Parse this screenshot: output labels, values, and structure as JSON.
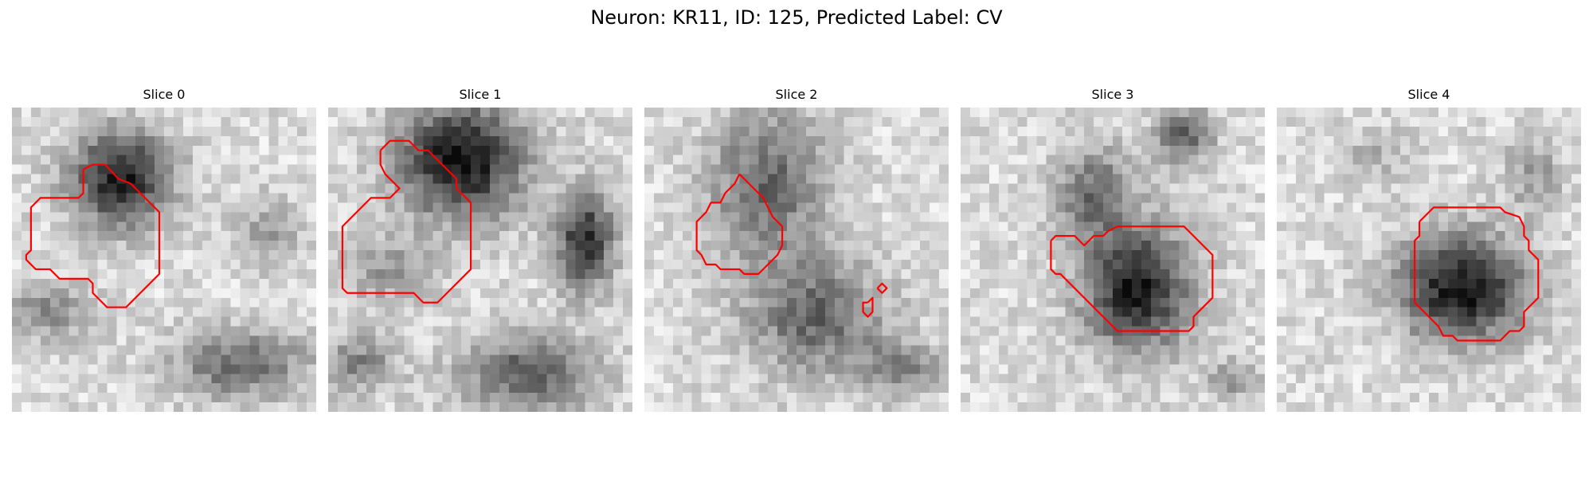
{
  "figure": {
    "title": "Neuron: KR11, ID: 125, Predicted Label: CV",
    "contour_color": "#ff0000"
  },
  "panels": [
    {
      "title": "Slice 0",
      "blobs": [
        {
          "cx": 11.5,
          "cy": 7.5,
          "rx": 5.2,
          "ry": 5.0,
          "strength": 0.75
        },
        {
          "cx": 24.0,
          "cy": 27.0,
          "rx": 7.0,
          "ry": 3.5,
          "strength": 0.45
        },
        {
          "cx": 3.5,
          "cy": 21.5,
          "rx": 5.0,
          "ry": 3.0,
          "strength": 0.3
        },
        {
          "cx": 27.0,
          "cy": 13.0,
          "rx": 3.0,
          "ry": 3.5,
          "strength": 0.25
        }
      ],
      "contours": [
        [
          [
            7.5,
            6.5
          ],
          [
            8.5,
            6.0
          ],
          [
            9.8,
            6.0
          ],
          [
            11.2,
            7.5
          ],
          [
            12.5,
            8.0
          ],
          [
            15.0,
            10.5
          ],
          [
            15.5,
            11.0
          ],
          [
            15.5,
            17.5
          ],
          [
            12.0,
            21.0
          ],
          [
            10.0,
            21.0
          ],
          [
            8.5,
            19.5
          ],
          [
            8.5,
            18.5
          ],
          [
            8.0,
            18.0
          ],
          [
            5.0,
            18.0
          ],
          [
            4.0,
            17.0
          ],
          [
            2.5,
            17.0
          ],
          [
            1.5,
            16.0
          ],
          [
            1.5,
            15.5
          ],
          [
            2.0,
            15.0
          ],
          [
            2.0,
            10.5
          ],
          [
            3.0,
            9.5
          ],
          [
            7.0,
            9.5
          ],
          [
            7.5,
            9.0
          ],
          [
            7.5,
            6.5
          ]
        ]
      ]
    },
    {
      "title": "Slice 1",
      "blobs": [
        {
          "cx": 14.0,
          "cy": 5.5,
          "rx": 6.5,
          "ry": 6.0,
          "strength": 0.8
        },
        {
          "cx": 27.0,
          "cy": 14.0,
          "rx": 3.0,
          "ry": 5.0,
          "strength": 0.7
        },
        {
          "cx": 21.0,
          "cy": 28.0,
          "rx": 7.0,
          "ry": 4.0,
          "strength": 0.5
        },
        {
          "cx": 6.0,
          "cy": 17.0,
          "rx": 5.0,
          "ry": 3.5,
          "strength": 0.25
        },
        {
          "cx": 3.0,
          "cy": 27.0,
          "rx": 4.0,
          "ry": 3.0,
          "strength": 0.35
        }
      ],
      "contours": [
        [
          [
            5.5,
            4.5
          ],
          [
            6.5,
            3.5
          ],
          [
            8.5,
            3.5
          ],
          [
            9.5,
            4.5
          ],
          [
            10.5,
            4.5
          ],
          [
            13.5,
            7.5
          ],
          [
            13.5,
            8.5
          ],
          [
            15.0,
            10.0
          ],
          [
            15.0,
            17.0
          ],
          [
            11.5,
            20.5
          ],
          [
            10.0,
            20.5
          ],
          [
            9.0,
            19.5
          ],
          [
            2.0,
            19.5
          ],
          [
            1.5,
            19.0
          ],
          [
            1.5,
            12.5
          ],
          [
            4.5,
            9.5
          ],
          [
            6.5,
            9.5
          ],
          [
            7.5,
            8.5
          ],
          [
            6.0,
            7.0
          ],
          [
            5.5,
            6.0
          ],
          [
            5.5,
            4.5
          ]
        ]
      ]
    },
    {
      "title": "Slice 2",
      "blobs": [
        {
          "cx": 13.0,
          "cy": 8.0,
          "rx": 6.0,
          "ry": 8.0,
          "strength": 0.45
        },
        {
          "cx": 18.0,
          "cy": 22.0,
          "rx": 7.0,
          "ry": 6.0,
          "strength": 0.45
        },
        {
          "cx": 27.0,
          "cy": 27.5,
          "rx": 4.0,
          "ry": 3.0,
          "strength": 0.35
        }
      ],
      "contours": [
        [
          [
            10.0,
            7.0
          ],
          [
            11.0,
            8.0
          ],
          [
            12.5,
            9.5
          ],
          [
            13.5,
            11.5
          ],
          [
            14.5,
            12.5
          ],
          [
            14.5,
            14.5
          ],
          [
            14.0,
            15.5
          ],
          [
            13.0,
            16.5
          ],
          [
            12.0,
            17.5
          ],
          [
            10.5,
            17.5
          ],
          [
            10.0,
            17.0
          ],
          [
            8.0,
            17.0
          ],
          [
            7.5,
            16.5
          ],
          [
            6.5,
            16.5
          ],
          [
            6.0,
            15.5
          ],
          [
            5.5,
            15.0
          ],
          [
            5.5,
            12.0
          ],
          [
            6.5,
            11.0
          ],
          [
            7.0,
            10.0
          ],
          [
            8.0,
            10.0
          ],
          [
            8.5,
            9.0
          ],
          [
            9.5,
            8.0
          ],
          [
            10.0,
            7.0
          ]
        ],
        [
          [
            24.5,
            19.0
          ],
          [
            25.0,
            18.5
          ],
          [
            25.5,
            19.0
          ],
          [
            25.0,
            19.5
          ],
          [
            24.5,
            19.0
          ]
        ],
        [
          [
            23.5,
            20.5
          ],
          [
            24.0,
            20.0
          ],
          [
            24.0,
            21.5
          ],
          [
            23.5,
            22.0
          ],
          [
            23.0,
            21.5
          ],
          [
            23.0,
            20.5
          ],
          [
            23.5,
            20.5
          ]
        ]
      ]
    },
    {
      "title": "Slice 3",
      "blobs": [
        {
          "cx": 18.5,
          "cy": 19.0,
          "rx": 5.5,
          "ry": 6.5,
          "strength": 0.75
        },
        {
          "cx": 14.0,
          "cy": 9.0,
          "rx": 4.0,
          "ry": 5.0,
          "strength": 0.4
        },
        {
          "cx": 23.5,
          "cy": 3.0,
          "rx": 3.0,
          "ry": 3.0,
          "strength": 0.45
        },
        {
          "cx": 28.5,
          "cy": 28.5,
          "rx": 2.5,
          "ry": 2.0,
          "strength": 0.3
        }
      ],
      "contours": [
        [
          [
            9.5,
            14.0
          ],
          [
            10.0,
            13.5
          ],
          [
            12.0,
            13.5
          ],
          [
            12.5,
            14.0
          ],
          [
            13.0,
            14.5
          ],
          [
            13.5,
            14.0
          ],
          [
            14.0,
            13.5
          ],
          [
            15.0,
            13.5
          ],
          [
            15.5,
            13.0
          ],
          [
            16.5,
            12.5
          ],
          [
            23.5,
            12.5
          ],
          [
            24.5,
            13.5
          ],
          [
            25.5,
            14.5
          ],
          [
            26.5,
            15.5
          ],
          [
            26.5,
            20.0
          ],
          [
            25.5,
            21.0
          ],
          [
            24.5,
            22.0
          ],
          [
            24.5,
            23.0
          ],
          [
            24.0,
            23.5
          ],
          [
            16.5,
            23.5
          ],
          [
            15.5,
            22.5
          ],
          [
            10.5,
            17.5
          ],
          [
            10.0,
            17.5
          ],
          [
            9.5,
            17.0
          ],
          [
            9.5,
            14.0
          ]
        ]
      ]
    },
    {
      "title": "Slice 4",
      "blobs": [
        {
          "cx": 19.5,
          "cy": 19.0,
          "rx": 6.5,
          "ry": 5.5,
          "strength": 0.8
        },
        {
          "cx": 27.0,
          "cy": 7.0,
          "rx": 3.0,
          "ry": 4.0,
          "strength": 0.25
        },
        {
          "cx": 10.0,
          "cy": 5.0,
          "rx": 4.0,
          "ry": 3.0,
          "strength": 0.15
        }
      ],
      "contours": [
        [
          [
            15.0,
            12.0
          ],
          [
            16.5,
            10.5
          ],
          [
            23.5,
            10.5
          ],
          [
            24.0,
            11.0
          ],
          [
            25.5,
            11.5
          ],
          [
            26.0,
            12.5
          ],
          [
            26.0,
            13.5
          ],
          [
            26.5,
            14.0
          ],
          [
            26.5,
            15.0
          ],
          [
            27.5,
            16.0
          ],
          [
            27.5,
            20.0
          ],
          [
            27.0,
            20.5
          ],
          [
            26.0,
            21.5
          ],
          [
            26.0,
            23.0
          ],
          [
            25.5,
            23.5
          ],
          [
            24.5,
            23.5
          ],
          [
            24.0,
            24.0
          ],
          [
            23.5,
            24.5
          ],
          [
            19.0,
            24.5
          ],
          [
            18.5,
            24.0
          ],
          [
            17.5,
            24.0
          ],
          [
            17.0,
            23.0
          ],
          [
            16.5,
            22.5
          ],
          [
            15.5,
            21.5
          ],
          [
            14.5,
            20.5
          ],
          [
            14.5,
            14.0
          ],
          [
            15.0,
            13.5
          ],
          [
            15.0,
            12.0
          ]
        ]
      ]
    }
  ]
}
